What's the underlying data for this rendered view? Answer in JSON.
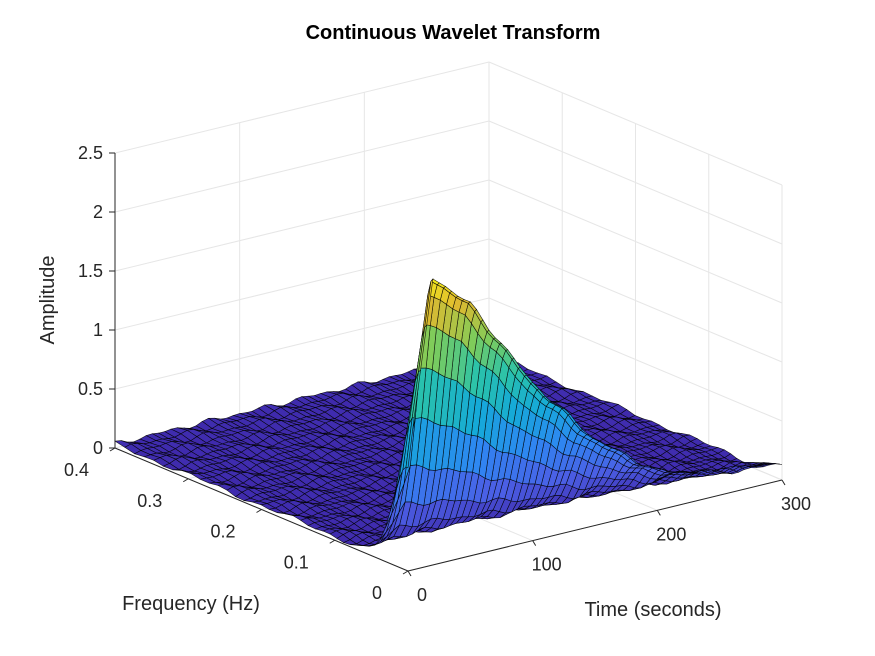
{
  "chart_data": {
    "type": "surface",
    "title": "Continuous Wavelet Transform",
    "xlabel": "Time (seconds)",
    "ylabel": "Frequency (Hz)",
    "zlabel": "Amplitude",
    "xlim": [
      0,
      300
    ],
    "ylim": [
      0,
      0.4
    ],
    "zlim": [
      0,
      2.5
    ],
    "x_ticks": [
      "0",
      "100",
      "200",
      "300"
    ],
    "y_ticks": [
      "0",
      "0.1",
      "0.2",
      "0.3",
      "0.4"
    ],
    "z_ticks": [
      "0",
      "0.5",
      "1",
      "1.5",
      "2",
      "2.5"
    ],
    "grid": true,
    "colormap": [
      "#3e26a8",
      "#4b5fe5",
      "#2e87f2",
      "#15a9d9",
      "#2ac3aa",
      "#81cc59",
      "#dfba30",
      "#f9fb15"
    ],
    "peak": {
      "time": 20,
      "frequency": 0.02,
      "amplitude": 2.4
    },
    "ridge": [
      {
        "time": 20,
        "amplitude": 2.4
      },
      {
        "time": 50,
        "amplitude": 2.1
      },
      {
        "time": 100,
        "amplitude": 1.3
      },
      {
        "time": 150,
        "amplitude": 0.7
      },
      {
        "time": 200,
        "amplitude": 0.3
      },
      {
        "time": 250,
        "amplitude": 0.15
      },
      {
        "time": 300,
        "amplitude": 0.1
      }
    ]
  }
}
